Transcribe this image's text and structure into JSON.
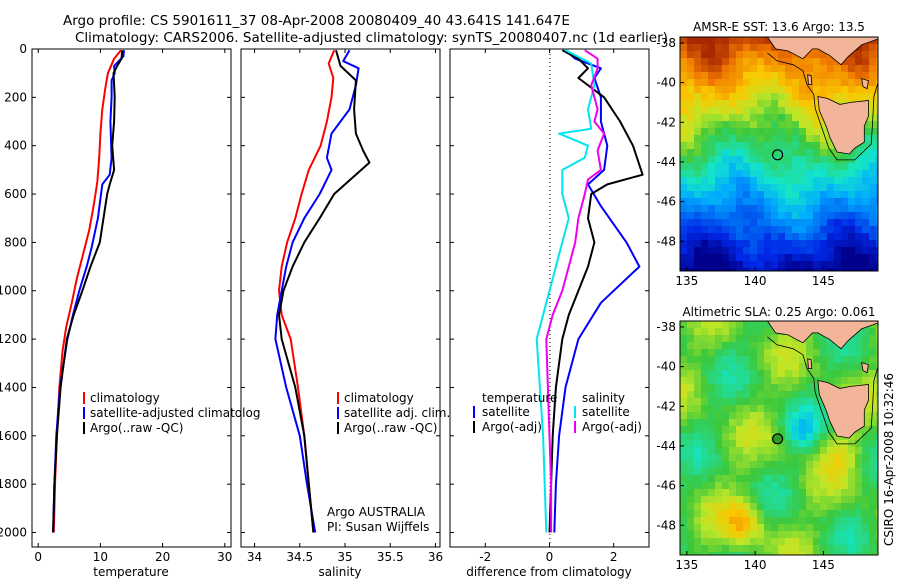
{
  "header": {
    "line1": "Argo profile: CS 5901611_37 08-Apr-2008 20080409_40 43.641S 141.647E",
    "line2": "Climatology: CARS2006. Satellite-adjusted climatology: synTS_20080407.nc (1d earlier)"
  },
  "credit": "CSIRO 16-Apr-2008 10:32:46",
  "colors": {
    "red": "#ff0000",
    "blue": "#0000ff",
    "black": "#000000",
    "cyan": "#00e5ee",
    "magenta": "#ee00ee",
    "land": "#f2b59a"
  },
  "chart_data": [
    {
      "id": "temperature",
      "type": "line",
      "xlabel": "temperature",
      "xlim": [
        -1,
        31
      ],
      "ylim": [
        2060,
        0
      ],
      "xticks": [
        0,
        10,
        20,
        30
      ],
      "yticks": [
        0,
        200,
        400,
        600,
        800,
        1000,
        1200,
        1400,
        1600,
        1800,
        2000
      ],
      "legend": [
        "climatology",
        "satellite-adjusted climatolog",
        "Argo(..raw -QC)"
      ],
      "series": [
        {
          "name": "climatology",
          "color": "red",
          "points": [
            [
              13.3,
              5
            ],
            [
              12.2,
              40
            ],
            [
              11.2,
              100
            ],
            [
              10.8,
              160
            ],
            [
              10.3,
              250
            ],
            [
              10,
              350
            ],
            [
              9.8,
              450
            ],
            [
              9.5,
              550
            ],
            [
              8.9,
              650
            ],
            [
              8.2,
              750
            ],
            [
              7.2,
              850
            ],
            [
              6.2,
              950
            ],
            [
              5.4,
              1050
            ],
            [
              4.5,
              1150
            ],
            [
              3.9,
              1250
            ],
            [
              3.4,
              1400
            ],
            [
              3,
              1600
            ],
            [
              2.7,
              1800
            ],
            [
              2.5,
              2000
            ]
          ]
        },
        {
          "name": "satellite-adjusted climatolog",
          "color": "blue",
          "points": [
            [
              13.8,
              5
            ],
            [
              13.7,
              30
            ],
            [
              12.2,
              70
            ],
            [
              12.3,
              100
            ],
            [
              11.8,
              130
            ],
            [
              11.8,
              200
            ],
            [
              11.6,
              300
            ],
            [
              11.8,
              450
            ],
            [
              11.5,
              520
            ],
            [
              10.3,
              560
            ],
            [
              10,
              620
            ],
            [
              9.6,
              700
            ],
            [
              8.6,
              820
            ],
            [
              7.8,
              900
            ],
            [
              6.6,
              1000
            ],
            [
              5.6,
              1100
            ],
            [
              4.7,
              1200
            ],
            [
              3.5,
              1400
            ],
            [
              2.9,
              1600
            ],
            [
              2.6,
              1800
            ],
            [
              2.4,
              2000
            ]
          ]
        },
        {
          "name": "Argo(..raw -QC)",
          "color": "black",
          "points": [
            [
              13.5,
              5
            ],
            [
              13.4,
              40
            ],
            [
              12.7,
              70
            ],
            [
              12.1,
              100
            ],
            [
              12.3,
              200
            ],
            [
              12.2,
              300
            ],
            [
              11.9,
              400
            ],
            [
              12.2,
              500
            ],
            [
              11.5,
              560
            ],
            [
              11.1,
              600
            ],
            [
              10.5,
              700
            ],
            [
              9.9,
              800
            ],
            [
              8.4,
              900
            ],
            [
              7.1,
              1000
            ],
            [
              5.7,
              1100
            ],
            [
              4.6,
              1200
            ],
            [
              3.6,
              1400
            ],
            [
              3,
              1600
            ],
            [
              2.6,
              1800
            ],
            [
              2.4,
              2000
            ]
          ]
        }
      ]
    },
    {
      "id": "salinity",
      "type": "line",
      "xlabel": "salinity",
      "xlim": [
        33.85,
        36.05
      ],
      "ylim": [
        2060,
        0
      ],
      "xticks": [
        34,
        34.5,
        35,
        35.5,
        36
      ],
      "annotation": [
        "Argo AUSTRALIA",
        "PI: Susan Wijffels"
      ],
      "legend": [
        "climatology",
        "satellite adj. clim.",
        "Argo(..raw -QC)"
      ],
      "series": [
        {
          "name": "climatology",
          "color": "red",
          "points": [
            [
              34.88,
              5
            ],
            [
              34.82,
              60
            ],
            [
              34.87,
              120
            ],
            [
              34.85,
              200
            ],
            [
              34.8,
              300
            ],
            [
              34.73,
              400
            ],
            [
              34.6,
              500
            ],
            [
              34.52,
              600
            ],
            [
              34.45,
              700
            ],
            [
              34.36,
              800
            ],
            [
              34.3,
              900
            ],
            [
              34.27,
              1000
            ],
            [
              34.3,
              1100
            ],
            [
              34.4,
              1200
            ],
            [
              34.48,
              1400
            ],
            [
              34.55,
              1600
            ],
            [
              34.6,
              1800
            ],
            [
              34.65,
              2000
            ]
          ]
        },
        {
          "name": "satellite adj. clim.",
          "color": "blue",
          "points": [
            [
              35.05,
              5
            ],
            [
              34.98,
              50
            ],
            [
              35.15,
              80
            ],
            [
              35.12,
              150
            ],
            [
              35.05,
              250
            ],
            [
              34.85,
              350
            ],
            [
              34.8,
              450
            ],
            [
              34.85,
              500
            ],
            [
              34.72,
              600
            ],
            [
              34.55,
              700
            ],
            [
              34.42,
              800
            ],
            [
              34.35,
              900
            ],
            [
              34.3,
              1000
            ],
            [
              34.25,
              1100
            ],
            [
              34.23,
              1200
            ],
            [
              34.35,
              1400
            ],
            [
              34.5,
              1600
            ],
            [
              34.58,
              1800
            ],
            [
              34.67,
              2000
            ]
          ]
        },
        {
          "name": "Argo(..raw -QC)",
          "color": "black",
          "points": [
            [
              34.9,
              5
            ],
            [
              34.95,
              70
            ],
            [
              35.12,
              130
            ],
            [
              35.1,
              250
            ],
            [
              35.12,
              350
            ],
            [
              35.2,
              420
            ],
            [
              35.27,
              470
            ],
            [
              35,
              560
            ],
            [
              34.88,
              600
            ],
            [
              34.72,
              700
            ],
            [
              34.55,
              800
            ],
            [
              34.42,
              900
            ],
            [
              34.32,
              1000
            ],
            [
              34.27,
              1100
            ],
            [
              34.3,
              1200
            ],
            [
              34.45,
              1400
            ],
            [
              34.55,
              1600
            ],
            [
              34.6,
              1800
            ],
            [
              34.65,
              2000
            ]
          ]
        }
      ]
    },
    {
      "id": "difference",
      "type": "line",
      "xlabel": "difference from climatology",
      "xlim": [
        -3.1,
        3.1
      ],
      "ylim": [
        2060,
        0
      ],
      "xticks": [
        -2,
        0,
        2
      ],
      "legend_titles": [
        "temperature",
        "salinity"
      ],
      "legend": [
        "satellite",
        "Argo(-adj)",
        "satellite",
        "Argo(-adj)"
      ],
      "series": [
        {
          "name": "satellite",
          "color": "blue",
          "group": "temperature",
          "points": [
            [
              0.5,
              5
            ],
            [
              0.8,
              40
            ],
            [
              1.6,
              80
            ],
            [
              1.4,
              120
            ],
            [
              1.6,
              200
            ],
            [
              1.6,
              300
            ],
            [
              1.8,
              400
            ],
            [
              1.7,
              500
            ],
            [
              1.2,
              560
            ],
            [
              1.6,
              650
            ],
            [
              2.4,
              800
            ],
            [
              2.8,
              900
            ],
            [
              1.6,
              1050
            ],
            [
              0.9,
              1200
            ],
            [
              0.5,
              1400
            ],
            [
              0.3,
              1600
            ],
            [
              0.2,
              1800
            ],
            [
              0.15,
              2000
            ]
          ]
        },
        {
          "name": "Argo(-adj)",
          "color": "black",
          "group": "temperature",
          "points": [
            [
              0.4,
              5
            ],
            [
              0.9,
              40
            ],
            [
              1.2,
              80
            ],
            [
              0.9,
              120
            ],
            [
              1.7,
              200
            ],
            [
              2.2,
              300
            ],
            [
              2.6,
              400
            ],
            [
              2.9,
              520
            ],
            [
              1.8,
              560
            ],
            [
              1.3,
              600
            ],
            [
              1.2,
              700
            ],
            [
              1.4,
              800
            ],
            [
              1.2,
              900
            ],
            [
              0.9,
              1000
            ],
            [
              0.6,
              1100
            ],
            [
              0.4,
              1200
            ],
            [
              0.2,
              1400
            ],
            [
              0.1,
              1600
            ],
            [
              0.05,
              1800
            ],
            [
              0,
              2000
            ]
          ]
        },
        {
          "name": "satellite",
          "color": "cyan",
          "group": "salinity",
          "points": [
            [
              0.5,
              5
            ],
            [
              1.3,
              60
            ],
            [
              1.4,
              150
            ],
            [
              1.2,
              250
            ],
            [
              1.3,
              330
            ],
            [
              0.3,
              350
            ],
            [
              1.2,
              400
            ],
            [
              1.1,
              450
            ],
            [
              0.4,
              500
            ],
            [
              0.4,
              600
            ],
            [
              0.6,
              700
            ],
            [
              0.4,
              800
            ],
            [
              0.2,
              900
            ],
            [
              0,
              1000
            ],
            [
              -0.2,
              1100
            ],
            [
              -0.4,
              1200
            ],
            [
              -0.3,
              1400
            ],
            [
              -0.2,
              1600
            ],
            [
              -0.15,
              1800
            ],
            [
              -0.1,
              2000
            ]
          ]
        },
        {
          "name": "Argo(-adj)",
          "color": "magenta",
          "group": "salinity",
          "points": [
            [
              1.1,
              5
            ],
            [
              1.5,
              40
            ],
            [
              1.5,
              80
            ],
            [
              1.3,
              150
            ],
            [
              1.5,
              250
            ],
            [
              1.4,
              300
            ],
            [
              1.7,
              350
            ],
            [
              1.5,
              420
            ],
            [
              1.6,
              500
            ],
            [
              1.2,
              540
            ],
            [
              1.1,
              600
            ],
            [
              0.9,
              700
            ],
            [
              0.8,
              800
            ],
            [
              0.6,
              900
            ],
            [
              0.4,
              1000
            ],
            [
              0.1,
              1100
            ],
            [
              -0.1,
              1200
            ],
            [
              -0.05,
              1400
            ],
            [
              0,
              1600
            ],
            [
              0.05,
              1800
            ],
            [
              0.05,
              2000
            ]
          ]
        }
      ]
    },
    {
      "id": "sst-map",
      "type": "heatmap",
      "title": "AMSR-E SST: 13.6 Argo: 13.5",
      "xlim": [
        134.5,
        149
      ],
      "ylim": [
        -49.5,
        -37.7
      ],
      "xticks": [
        135,
        140,
        145
      ],
      "yticks": [
        -38,
        -40,
        -42,
        -44,
        -46,
        -48
      ],
      "marker": {
        "lon": 141.647,
        "lat": -43.641
      }
    },
    {
      "id": "sla-map",
      "type": "heatmap",
      "title": "Altimetric SLA: 0.25 Argo: 0.061",
      "xlim": [
        134.5,
        149
      ],
      "ylim": [
        -49.5,
        -37.7
      ],
      "xticks": [
        135,
        140,
        145
      ],
      "yticks": [
        -38,
        -40,
        -42,
        -44,
        -46,
        -48
      ],
      "marker": {
        "lon": 141.647,
        "lat": -43.641
      }
    }
  ]
}
